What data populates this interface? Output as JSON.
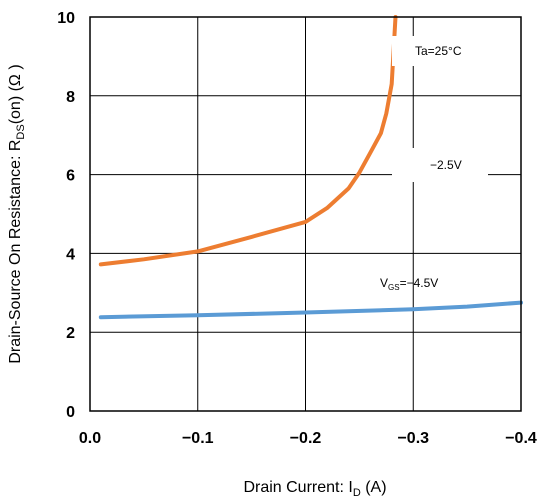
{
  "chart_data": {
    "type": "line",
    "xlabel_prefix": "Drain Current: I",
    "xlabel_sub": "D",
    "xlabel_suffix": " (A)",
    "ylabel_prefix": "Drain-Source On Resistance: R",
    "ylabel_sub": "DS",
    "ylabel_suffix": "(on) (Ω )",
    "xlim": [
      0,
      -0.4
    ],
    "ylim": [
      0,
      10
    ],
    "x_ticks": [
      {
        "value": 0,
        "label": "0.0"
      },
      {
        "value": -0.1,
        "label": "−0.1"
      },
      {
        "value": -0.2,
        "label": "−0.2"
      },
      {
        "value": -0.3,
        "label": "−0.3"
      },
      {
        "value": -0.4,
        "label": "−0.4"
      }
    ],
    "y_ticks": [
      {
        "value": 0,
        "label": "0"
      },
      {
        "value": 2,
        "label": "2"
      },
      {
        "value": 4,
        "label": "4"
      },
      {
        "value": 6,
        "label": "6"
      },
      {
        "value": 8,
        "label": "8"
      },
      {
        "value": 10,
        "label": "10"
      }
    ],
    "grid": true,
    "series": [
      {
        "name": "−2.5V",
        "color": "#ed7d31",
        "x": [
          -0.01,
          -0.05,
          -0.1,
          -0.15,
          -0.2,
          -0.22,
          -0.24,
          -0.25,
          -0.26,
          -0.27,
          -0.275,
          -0.28,
          -0.2835
        ],
        "y": [
          3.72,
          3.85,
          4.05,
          4.42,
          4.8,
          5.15,
          5.65,
          6.05,
          6.55,
          7.05,
          7.55,
          8.3,
          10.0
        ]
      },
      {
        "name": "V_GS=−4.5V",
        "color": "#5b9bd5",
        "x": [
          -0.01,
          -0.1,
          -0.2,
          -0.3,
          -0.35,
          -0.4
        ],
        "y": [
          2.38,
          2.43,
          2.5,
          2.58,
          2.65,
          2.75
        ]
      }
    ],
    "annotations": {
      "ta": "Ta=25°C",
      "vgs25": "−2.5V",
      "vgs45_prefix": "V",
      "vgs45_sub": "GS",
      "vgs45_suffix": "=−4.5V"
    }
  }
}
